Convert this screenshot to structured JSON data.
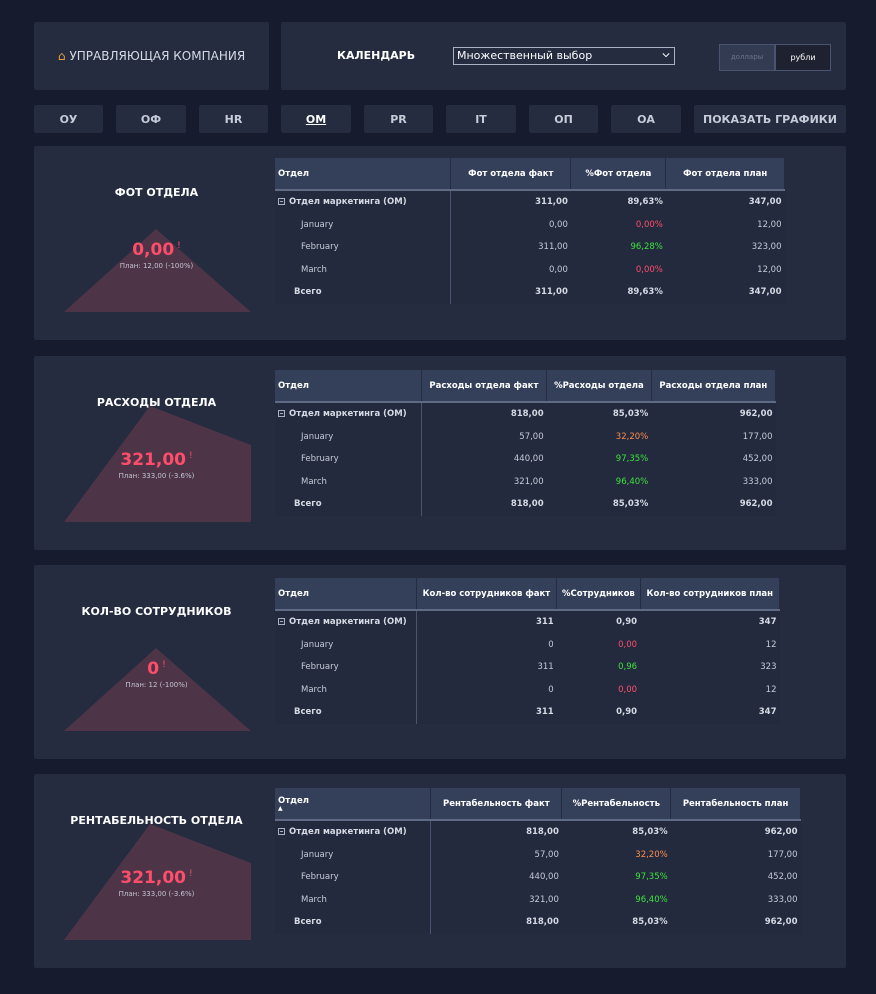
{
  "header": {
    "company_label": "УПРАВЛЯЮЩАЯ КОМПАНИЯ",
    "calendar_label": "КАЛЕНДАРЬ",
    "calendar_select": "Множественный выбор",
    "currency_usd": "доллары",
    "currency_rub": "рубли"
  },
  "tabs": [
    "ОУ",
    "ОФ",
    "HR",
    "ОМ",
    "PR",
    "IT",
    "ОП",
    "ОА",
    "ПОКАЗАТЬ ГРАФИКИ"
  ],
  "active_tab": "ОМ",
  "colors": {
    "negative": "#ff4d6b",
    "positive": "#3fe23f",
    "medium": "#ff8c4d",
    "kpi_shape": "#4e3447"
  },
  "sections": [
    {
      "title": "ФОТ ОТДЕЛА",
      "kpi_value": "0,00",
      "kpi_flag": "!",
      "kpi_plan": "План: 12,00 (-100%)",
      "columns": [
        "Отдел",
        "Фот отдела факт",
        "%Фот отдела",
        "Фот отдела план"
      ],
      "rows": [
        {
          "name": "Отдел маркетинга (ОМ)",
          "fact": "311,00",
          "pct": "89,63%",
          "plan": "347,00",
          "status": "neutral"
        },
        {
          "name": "January",
          "fact": "0,00",
          "pct": "0,00%",
          "plan": "12,00",
          "status": "neg"
        },
        {
          "name": "February",
          "fact": "311,00",
          "pct": "96,28%",
          "plan": "323,00",
          "status": "pos"
        },
        {
          "name": "March",
          "fact": "0,00",
          "pct": "0,00%",
          "plan": "12,00",
          "status": "neg"
        },
        {
          "name": "Всего",
          "fact": "311,00",
          "pct": "89,63%",
          "plan": "347,00",
          "status": "neutral"
        }
      ]
    },
    {
      "title": "РАСХОДЫ ОТДЕЛА",
      "kpi_value": "321,00",
      "kpi_flag": "!",
      "kpi_plan": "План: 333,00 (-3.6%)",
      "columns": [
        "Отдел",
        "Расходы отдела факт",
        "%Расходы отдела",
        "Расходы отдела план"
      ],
      "rows": [
        {
          "name": "Отдел маркетинга (ОМ)",
          "fact": "818,00",
          "pct": "85,03%",
          "plan": "962,00",
          "status": "neutral"
        },
        {
          "name": "January",
          "fact": "57,00",
          "pct": "32,20%",
          "plan": "177,00",
          "status": "mid"
        },
        {
          "name": "February",
          "fact": "440,00",
          "pct": "97,35%",
          "plan": "452,00",
          "status": "pos"
        },
        {
          "name": "March",
          "fact": "321,00",
          "pct": "96,40%",
          "plan": "333,00",
          "status": "pos"
        },
        {
          "name": "Всего",
          "fact": "818,00",
          "pct": "85,03%",
          "plan": "962,00",
          "status": "neutral"
        }
      ]
    },
    {
      "title": "КОЛ-ВО СОТРУДНИКОВ",
      "kpi_value": "0",
      "kpi_flag": "!",
      "kpi_plan": "План: 12 (-100%)",
      "columns": [
        "Отдел",
        "Кол-во сотрудников факт",
        "%Сотрудников",
        "Кол-во сотрудников план"
      ],
      "rows": [
        {
          "name": "Отдел маркетинга (ОМ)",
          "fact": "311",
          "pct": "0,90",
          "plan": "347",
          "status": "neutral"
        },
        {
          "name": "January",
          "fact": "0",
          "pct": "0,00",
          "plan": "12",
          "status": "neg"
        },
        {
          "name": "February",
          "fact": "311",
          "pct": "0,96",
          "plan": "323",
          "status": "pos"
        },
        {
          "name": "March",
          "fact": "0",
          "pct": "0,00",
          "plan": "12",
          "status": "neg"
        },
        {
          "name": "Всего",
          "fact": "311",
          "pct": "0,90",
          "plan": "347",
          "status": "neutral"
        }
      ]
    },
    {
      "title": "РЕНТАБЕЛЬНОСТЬ ОТДЕЛА",
      "kpi_value": "321,00",
      "kpi_flag": "!",
      "kpi_plan": "План: 333,00 (-3.6%)",
      "columns": [
        "Отдел",
        "Рентабельность факт",
        "%Рентабельность",
        "Рентабельность план"
      ],
      "rows": [
        {
          "name": "Отдел маркетинга (ОМ)",
          "fact": "818,00",
          "pct": "85,03%",
          "plan": "962,00",
          "status": "neutral"
        },
        {
          "name": "January",
          "fact": "57,00",
          "pct": "32,20%",
          "plan": "177,00",
          "status": "mid"
        },
        {
          "name": "February",
          "fact": "440,00",
          "pct": "97,35%",
          "plan": "452,00",
          "status": "pos"
        },
        {
          "name": "March",
          "fact": "321,00",
          "pct": "96,40%",
          "plan": "333,00",
          "status": "pos"
        },
        {
          "name": "Всего",
          "fact": "818,00",
          "pct": "85,03%",
          "plan": "962,00",
          "status": "neutral"
        }
      ]
    }
  ]
}
